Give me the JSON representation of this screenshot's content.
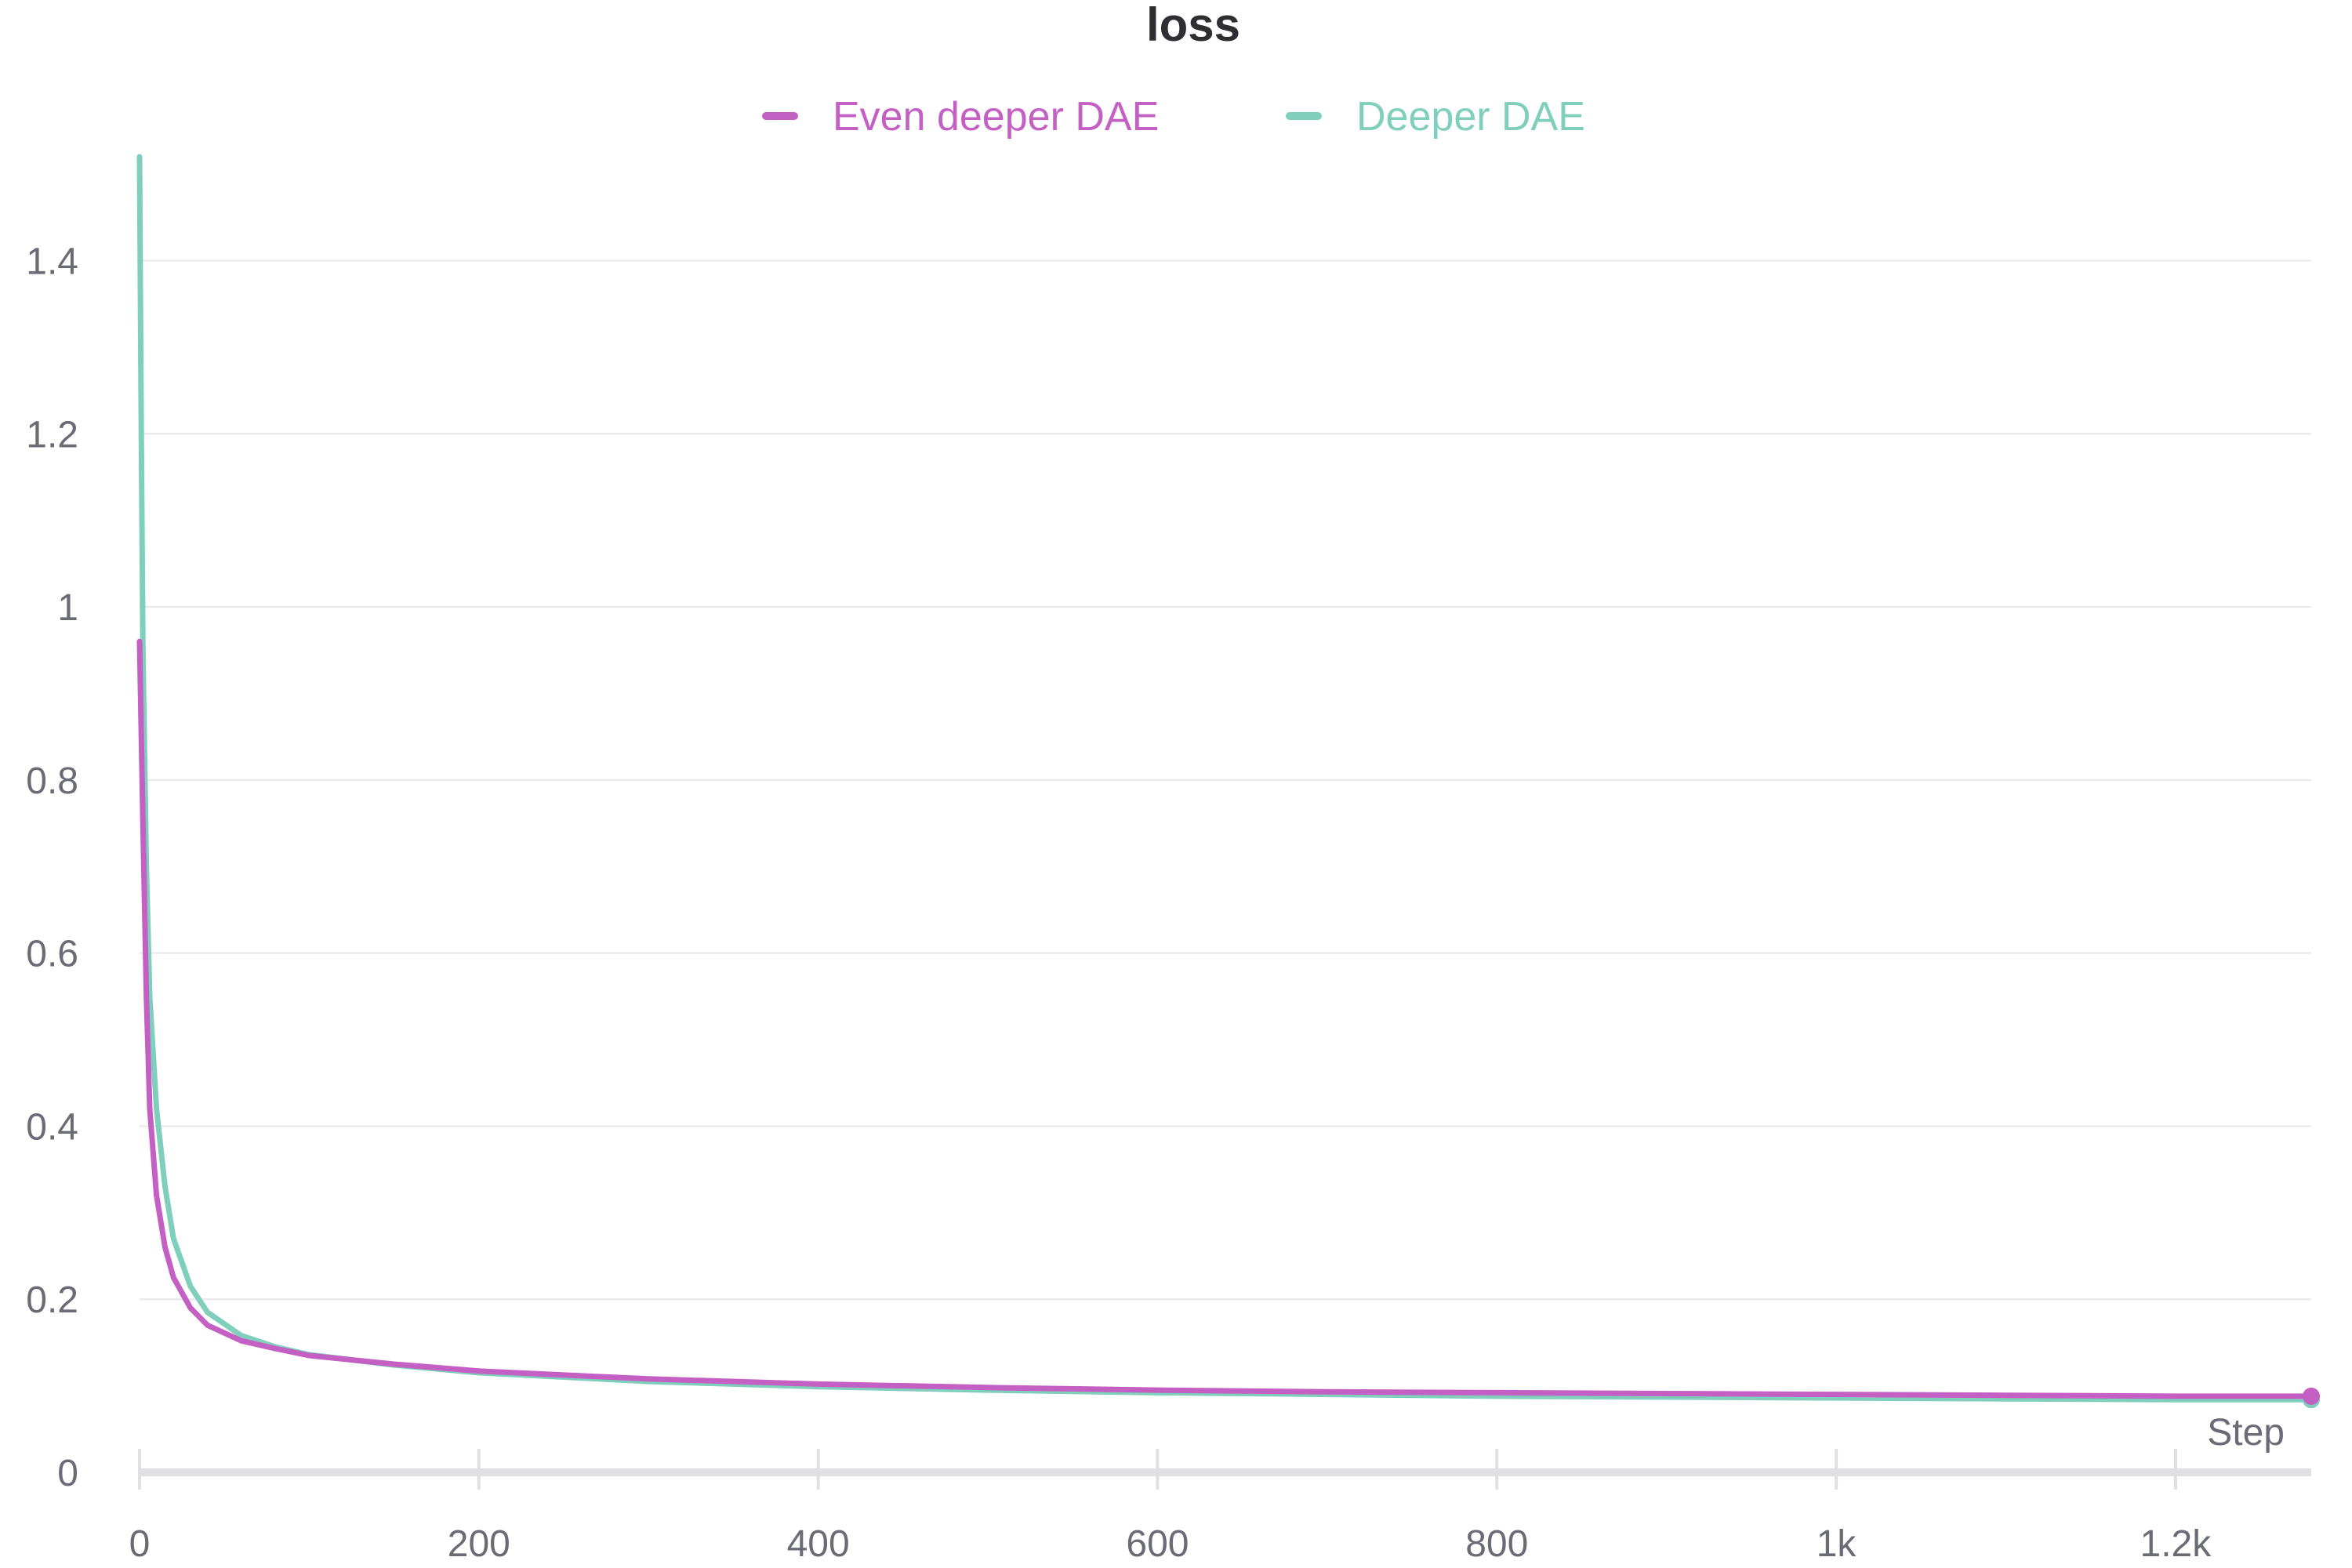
{
  "chart_data": {
    "type": "line",
    "title": "loss",
    "xlabel": "Step",
    "ylabel": "",
    "xlim": [
      0,
      1280
    ],
    "ylim": [
      0,
      1.52
    ],
    "x_ticks": [
      {
        "value": 0,
        "label": "0"
      },
      {
        "value": 200,
        "label": "200"
      },
      {
        "value": 400,
        "label": "400"
      },
      {
        "value": 600,
        "label": "600"
      },
      {
        "value": 800,
        "label": "800"
      },
      {
        "value": 1000,
        "label": "1k"
      },
      {
        "value": 1200,
        "label": "1.2k"
      }
    ],
    "y_ticks": [
      {
        "value": 0,
        "label": "0"
      },
      {
        "value": 0.2,
        "label": "0.2"
      },
      {
        "value": 0.4,
        "label": "0.4"
      },
      {
        "value": 0.6,
        "label": "0.6"
      },
      {
        "value": 0.8,
        "label": "0.8"
      },
      {
        "value": 1,
        "label": "1"
      },
      {
        "value": 1.2,
        "label": "1.2"
      },
      {
        "value": 1.4,
        "label": "1.4"
      }
    ],
    "grid": true,
    "legend_position": "top-center",
    "series": [
      {
        "name": "Even deeper DAE",
        "color": "#c45fc4",
        "x": [
          0,
          2,
          4,
          6,
          10,
          15,
          20,
          30,
          40,
          60,
          80,
          100,
          150,
          200,
          300,
          400,
          500,
          600,
          700,
          800,
          900,
          1000,
          1100,
          1200,
          1280
        ],
        "y": [
          0.96,
          0.75,
          0.55,
          0.42,
          0.32,
          0.26,
          0.225,
          0.19,
          0.17,
          0.152,
          0.143,
          0.135,
          0.125,
          0.117,
          0.108,
          0.102,
          0.098,
          0.095,
          0.093,
          0.092,
          0.091,
          0.09,
          0.089,
          0.088,
          0.088
        ]
      },
      {
        "name": "Deeper DAE",
        "color": "#7fcfbc",
        "x": [
          0,
          1,
          2,
          4,
          6,
          10,
          15,
          20,
          30,
          40,
          60,
          80,
          100,
          150,
          200,
          300,
          400,
          500,
          600,
          700,
          800,
          900,
          1000,
          1100,
          1200,
          1280
        ],
        "y": [
          1.52,
          1.2,
          0.95,
          0.7,
          0.55,
          0.42,
          0.33,
          0.27,
          0.215,
          0.185,
          0.158,
          0.145,
          0.136,
          0.124,
          0.115,
          0.105,
          0.099,
          0.095,
          0.092,
          0.09,
          0.088,
          0.087,
          0.086,
          0.085,
          0.084,
          0.084
        ]
      }
    ]
  }
}
